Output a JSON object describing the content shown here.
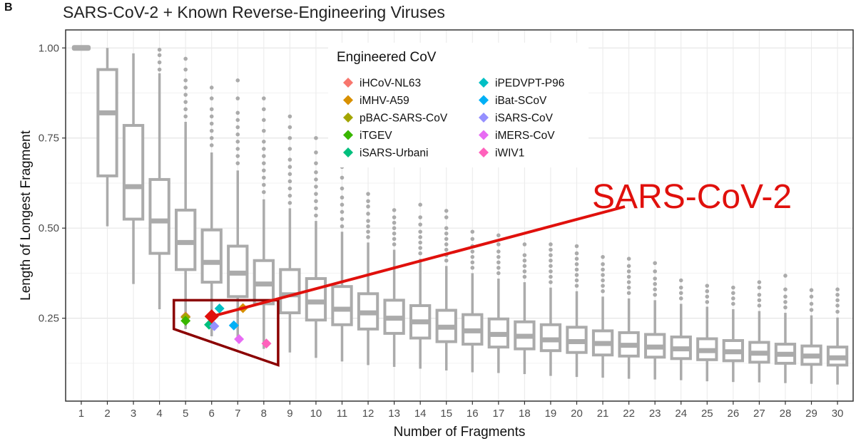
{
  "panel_label": "B",
  "chart_data": {
    "type": "boxplot",
    "title": "SARS-CoV-2 + Known Reverse-Engineering Viruses",
    "xlabel": "Number of Fragments",
    "ylabel": "Length of Longest Fragment",
    "xlim": [
      0.4,
      30.6
    ],
    "ylim": [
      0.02,
      1.05
    ],
    "y_ticks": [
      0.25,
      0.5,
      0.75,
      1.0
    ],
    "y_tick_labels": [
      "0.25",
      "0.50",
      "0.75",
      "1.00"
    ],
    "categories": [
      "1",
      "2",
      "3",
      "4",
      "5",
      "6",
      "7",
      "8",
      "9",
      "10",
      "11",
      "12",
      "13",
      "14",
      "15",
      "16",
      "17",
      "18",
      "19",
      "20",
      "21",
      "22",
      "23",
      "24",
      "25",
      "26",
      "27",
      "28",
      "29",
      "30"
    ],
    "boxes": [
      {
        "x": 1,
        "whisker_low": 1.0,
        "q1": 1.0,
        "median": 1.0,
        "q3": 1.0,
        "whisker_high": 1.0,
        "outliers": []
      },
      {
        "x": 2,
        "whisker_low": 0.505,
        "q1": 0.645,
        "median": 0.82,
        "q3": 0.94,
        "whisker_high": 1.0,
        "outliers": []
      },
      {
        "x": 3,
        "whisker_low": 0.345,
        "q1": 0.525,
        "median": 0.615,
        "q3": 0.785,
        "whisker_high": 0.985,
        "outliers": []
      },
      {
        "x": 4,
        "whisker_low": 0.275,
        "q1": 0.43,
        "median": 0.52,
        "q3": 0.635,
        "whisker_high": 0.93,
        "outliers": [
          0.94,
          0.96,
          0.98,
          0.995
        ]
      },
      {
        "x": 5,
        "whisker_low": 0.22,
        "q1": 0.385,
        "median": 0.46,
        "q3": 0.55,
        "whisker_high": 0.795,
        "outliers": [
          0.81,
          0.83,
          0.85,
          0.87,
          0.89,
          0.91,
          0.94,
          0.97
        ]
      },
      {
        "x": 6,
        "whisker_low": 0.2,
        "q1": 0.35,
        "median": 0.405,
        "q3": 0.495,
        "whisker_high": 0.71,
        "outliers": [
          0.73,
          0.75,
          0.77,
          0.79,
          0.81,
          0.83,
          0.86,
          0.89
        ]
      },
      {
        "x": 7,
        "whisker_low": 0.185,
        "q1": 0.31,
        "median": 0.375,
        "q3": 0.45,
        "whisker_high": 0.66,
        "outliers": [
          0.68,
          0.7,
          0.72,
          0.74,
          0.76,
          0.78,
          0.8,
          0.82,
          0.86,
          0.91
        ]
      },
      {
        "x": 8,
        "whisker_low": 0.165,
        "q1": 0.29,
        "median": 0.345,
        "q3": 0.41,
        "whisker_high": 0.58,
        "outliers": [
          0.6,
          0.62,
          0.64,
          0.66,
          0.68,
          0.7,
          0.72,
          0.74,
          0.77,
          0.8,
          0.83,
          0.86
        ]
      },
      {
        "x": 9,
        "whisker_low": 0.155,
        "q1": 0.265,
        "median": 0.315,
        "q3": 0.385,
        "whisker_high": 0.555,
        "outliers": [
          0.57,
          0.59,
          0.61,
          0.63,
          0.65,
          0.67,
          0.69,
          0.72,
          0.75,
          0.78,
          0.81
        ]
      },
      {
        "x": 10,
        "whisker_low": 0.14,
        "q1": 0.245,
        "median": 0.295,
        "q3": 0.36,
        "whisker_high": 0.52,
        "outliers": [
          0.535,
          0.555,
          0.575,
          0.595,
          0.615,
          0.635,
          0.655,
          0.68,
          0.71,
          0.75
        ]
      },
      {
        "x": 11,
        "whisker_low": 0.13,
        "q1": 0.232,
        "median": 0.275,
        "q3": 0.338,
        "whisker_high": 0.49,
        "outliers": [
          0.505,
          0.525,
          0.545,
          0.565,
          0.585,
          0.61,
          0.64,
          0.67,
          0.7
        ]
      },
      {
        "x": 12,
        "whisker_low": 0.12,
        "q1": 0.22,
        "median": 0.265,
        "q3": 0.318,
        "whisker_high": 0.46,
        "outliers": [
          0.475,
          0.49,
          0.505,
          0.52,
          0.54,
          0.56,
          0.575,
          0.595
        ]
      },
      {
        "x": 13,
        "whisker_low": 0.115,
        "q1": 0.208,
        "median": 0.25,
        "q3": 0.3,
        "whisker_high": 0.44,
        "outliers": [
          0.455,
          0.47,
          0.485,
          0.5,
          0.515,
          0.53,
          0.55
        ]
      },
      {
        "x": 14,
        "whisker_low": 0.11,
        "q1": 0.195,
        "median": 0.24,
        "q3": 0.285,
        "whisker_high": 0.415,
        "outliers": [
          0.43,
          0.445,
          0.46,
          0.475,
          0.49,
          0.51,
          0.53,
          0.565
        ]
      },
      {
        "x": 15,
        "whisker_low": 0.105,
        "q1": 0.185,
        "median": 0.225,
        "q3": 0.272,
        "whisker_high": 0.395,
        "outliers": [
          0.41,
          0.425,
          0.44,
          0.455,
          0.47,
          0.485,
          0.5,
          0.53,
          0.548
        ]
      },
      {
        "x": 16,
        "whisker_low": 0.1,
        "q1": 0.178,
        "median": 0.215,
        "q3": 0.26,
        "whisker_high": 0.375,
        "outliers": [
          0.39,
          0.405,
          0.42,
          0.435,
          0.45,
          0.47,
          0.49
        ]
      },
      {
        "x": 17,
        "whisker_low": 0.098,
        "q1": 0.17,
        "median": 0.205,
        "q3": 0.248,
        "whisker_high": 0.36,
        "outliers": [
          0.375,
          0.39,
          0.405,
          0.42,
          0.435,
          0.455,
          0.48
        ]
      },
      {
        "x": 18,
        "whisker_low": 0.095,
        "q1": 0.165,
        "median": 0.2,
        "q3": 0.24,
        "whisker_high": 0.35,
        "outliers": [
          0.365,
          0.38,
          0.395,
          0.41,
          0.425,
          0.455
        ]
      },
      {
        "x": 19,
        "whisker_low": 0.09,
        "q1": 0.16,
        "median": 0.19,
        "q3": 0.232,
        "whisker_high": 0.335,
        "outliers": [
          0.35,
          0.365,
          0.38,
          0.395,
          0.41,
          0.425,
          0.44,
          0.455
        ]
      },
      {
        "x": 20,
        "whisker_low": 0.087,
        "q1": 0.155,
        "median": 0.185,
        "q3": 0.225,
        "whisker_high": 0.325,
        "outliers": [
          0.34,
          0.355,
          0.37,
          0.385,
          0.4,
          0.415,
          0.43,
          0.45
        ]
      },
      {
        "x": 21,
        "whisker_low": 0.085,
        "q1": 0.148,
        "median": 0.18,
        "q3": 0.215,
        "whisker_high": 0.31,
        "outliers": [
          0.325,
          0.34,
          0.355,
          0.37,
          0.385,
          0.4,
          0.42
        ]
      },
      {
        "x": 22,
        "whisker_low": 0.082,
        "q1": 0.145,
        "median": 0.175,
        "q3": 0.21,
        "whisker_high": 0.305,
        "outliers": [
          0.32,
          0.335,
          0.35,
          0.365,
          0.38,
          0.395,
          0.415
        ]
      },
      {
        "x": 23,
        "whisker_low": 0.08,
        "q1": 0.142,
        "median": 0.17,
        "q3": 0.205,
        "whisker_high": 0.3,
        "outliers": [
          0.315,
          0.33,
          0.345,
          0.36,
          0.38,
          0.403
        ]
      },
      {
        "x": 24,
        "whisker_low": 0.078,
        "q1": 0.138,
        "median": 0.165,
        "q3": 0.198,
        "whisker_high": 0.29,
        "outliers": [
          0.305,
          0.32,
          0.335,
          0.355
        ]
      },
      {
        "x": 25,
        "whisker_low": 0.075,
        "q1": 0.135,
        "median": 0.16,
        "q3": 0.193,
        "whisker_high": 0.282,
        "outliers": [
          0.295,
          0.31,
          0.325,
          0.34
        ]
      },
      {
        "x": 26,
        "whisker_low": 0.073,
        "q1": 0.132,
        "median": 0.157,
        "q3": 0.188,
        "whisker_high": 0.275,
        "outliers": [
          0.29,
          0.305,
          0.32,
          0.335
        ]
      },
      {
        "x": 27,
        "whisker_low": 0.072,
        "q1": 0.128,
        "median": 0.153,
        "q3": 0.183,
        "whisker_high": 0.27,
        "outliers": [
          0.285,
          0.3,
          0.315,
          0.335,
          0.35
        ]
      },
      {
        "x": 28,
        "whisker_low": 0.07,
        "q1": 0.125,
        "median": 0.15,
        "q3": 0.178,
        "whisker_high": 0.265,
        "outliers": [
          0.28,
          0.295,
          0.31,
          0.33,
          0.368
        ]
      },
      {
        "x": 29,
        "whisker_low": 0.068,
        "q1": 0.122,
        "median": 0.145,
        "q3": 0.173,
        "whisker_high": 0.258,
        "outliers": [
          0.273,
          0.29,
          0.31,
          0.328
        ]
      },
      {
        "x": 30,
        "whisker_low": 0.066,
        "q1": 0.12,
        "median": 0.14,
        "q3": 0.17,
        "whisker_high": 0.252,
        "outliers": [
          0.268,
          0.285,
          0.3,
          0.315,
          0.33
        ]
      }
    ],
    "legend": {
      "title": "Engineered CoV",
      "position": "top-center",
      "columns": [
        [
          "iHCoV-NL63",
          "iMHV-A59",
          "pBAC-SARS-CoV",
          "iTGEV",
          "iSARS-Urbani"
        ],
        [
          "iPEDVPT-P96",
          "iBat-SCoV",
          "iSARS-CoV",
          "iMERS-CoV",
          "iWIV1"
        ]
      ]
    },
    "series": [
      {
        "name": "iHCoV-NL63",
        "color": "#F8766D",
        "x": 5,
        "y": 0.255
      },
      {
        "name": "iMHV-A59",
        "color": "#D89000",
        "x": 7.2,
        "y": 0.278
      },
      {
        "name": "pBAC-SARS-CoV",
        "color": "#A3A500",
        "x": 5,
        "y": 0.253
      },
      {
        "name": "iTGEV",
        "color": "#39B600",
        "x": 5,
        "y": 0.243
      },
      {
        "name": "iSARS-Urbani",
        "color": "#00BF7D",
        "x": 5.9,
        "y": 0.232
      },
      {
        "name": "iPEDVPT-P96",
        "color": "#00BFC4",
        "x": 6.3,
        "y": 0.277
      },
      {
        "name": "iBat-SCoV",
        "color": "#00B0F6",
        "x": 6.85,
        "y": 0.23
      },
      {
        "name": "iSARS-CoV",
        "color": "#9590FF",
        "x": 6.1,
        "y": 0.228
      },
      {
        "name": "iMERS-CoV",
        "color": "#E76BF3",
        "x": 7.05,
        "y": 0.192
      },
      {
        "name": "iWIV1",
        "color": "#FF62BC",
        "x": 8.1,
        "y": 0.18
      }
    ],
    "highlight": {
      "name": "SARS-CoV-2",
      "color": "#e0100c",
      "x": 6,
      "y": 0.255
    },
    "annotation": {
      "text": "SARS-CoV-2",
      "color": "#e0100c"
    },
    "region": {
      "color": "#8b0000",
      "points": [
        [
          4.55,
          0.3
        ],
        [
          8.55,
          0.3
        ],
        [
          8.55,
          0.12
        ],
        [
          4.55,
          0.22
        ]
      ]
    }
  }
}
